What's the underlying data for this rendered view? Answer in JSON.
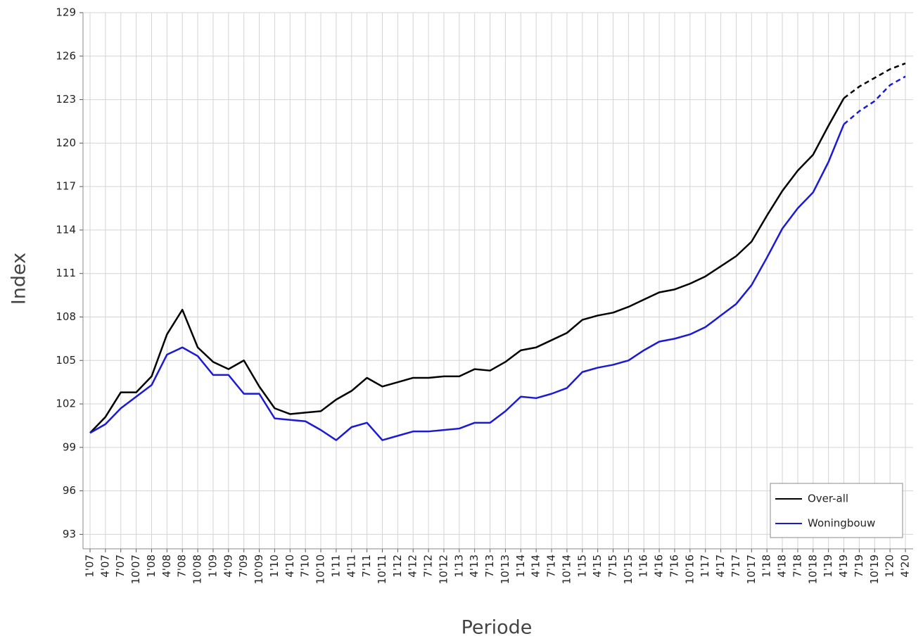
{
  "chart_data": {
    "type": "line",
    "x_label": "Periode",
    "y_label": "Index",
    "categories": [
      "1'07",
      "4'07",
      "7'07",
      "10'07",
      "1'08",
      "4'08",
      "7'08",
      "10'08",
      "1'09",
      "4'09",
      "7'09",
      "10'09",
      "1'10",
      "4'10",
      "7'10",
      "10'10",
      "1'11",
      "4'11",
      "7'11",
      "10'11",
      "1'12",
      "4'12",
      "7'12",
      "10'12",
      "1'13",
      "4'13",
      "7'13",
      "10'13",
      "1'14",
      "4'14",
      "7'14",
      "10'14",
      "1'15",
      "4'15",
      "7'15",
      "10'15",
      "1'16",
      "4'16",
      "7'16",
      "10'16",
      "1'17",
      "4'17",
      "7'17",
      "10'17",
      "1'18",
      "4'18",
      "7'18",
      "10'18",
      "1'19",
      "4'19",
      "7'19",
      "10'19",
      "1'20",
      "4'20"
    ],
    "series": [
      {
        "name": "Over-all",
        "color": "#000000",
        "values": [
          100.0,
          101.1,
          102.8,
          102.8,
          103.9,
          106.8,
          108.5,
          105.9,
          104.9,
          104.4,
          105.0,
          103.2,
          101.7,
          101.3,
          101.4,
          101.5,
          102.3,
          102.9,
          103.8,
          103.2,
          103.5,
          103.8,
          103.8,
          103.9,
          103.9,
          104.4,
          104.3,
          104.9,
          105.7,
          105.9,
          106.4,
          106.9,
          107.8,
          108.1,
          108.3,
          108.7,
          109.2,
          109.7,
          109.9,
          110.3,
          110.8,
          111.5,
          112.2,
          113.2,
          115.0,
          116.7,
          118.1,
          119.2,
          121.2,
          123.1,
          123.9,
          124.5,
          125.1,
          125.5
        ]
      },
      {
        "name": "Woningbouw",
        "color": "#1a1ad6",
        "values": [
          100.0,
          100.6,
          101.7,
          102.5,
          103.3,
          105.4,
          105.9,
          105.3,
          104.0,
          104.0,
          102.7,
          102.7,
          101.0,
          100.9,
          100.8,
          100.2,
          99.5,
          100.4,
          100.7,
          99.5,
          99.8,
          100.1,
          100.1,
          100.2,
          100.3,
          100.7,
          100.7,
          101.5,
          102.5,
          102.4,
          102.7,
          103.1,
          104.2,
          104.5,
          104.7,
          105.0,
          105.7,
          106.3,
          106.5,
          106.8,
          107.3,
          108.1,
          108.9,
          110.2,
          112.1,
          114.1,
          115.5,
          116.6,
          118.7,
          121.3,
          122.2,
          122.9,
          124.0,
          124.6
        ]
      }
    ],
    "dashed_from": "4'19",
    "ylim": [
      92,
      129
    ],
    "yticks": [
      93,
      96,
      99,
      102,
      105,
      108,
      111,
      114,
      117,
      120,
      123,
      126,
      129
    ],
    "grid": true,
    "legend": "lower right"
  }
}
